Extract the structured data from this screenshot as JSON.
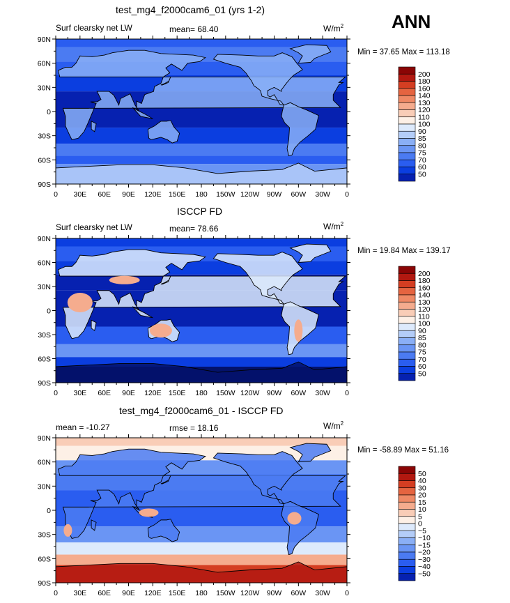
{
  "header": {
    "season": "ANN"
  },
  "colors": {
    "abs_scale": [
      "#03126b",
      "#0621b0",
      "#0b3ee0",
      "#2a5df0",
      "#4b7bf2",
      "#6a95f4",
      "#8aaff6",
      "#b4cdf8",
      "#ddeafc",
      "#fdf0e6",
      "#f9cdb7",
      "#f5ac8e",
      "#ef8965",
      "#e56440",
      "#d43e22",
      "#b21810",
      "#8a0505"
    ],
    "diff_scale": [
      "#03126b",
      "#0621b0",
      "#0b3ee0",
      "#2a5df0",
      "#4b7bf2",
      "#6a95f4",
      "#8aaff6",
      "#b4cdf8",
      "#ddeafc",
      "#fdf0e6",
      "#f9cdb7",
      "#f5ac8e",
      "#ef8965",
      "#e56440",
      "#d43e22",
      "#b21810",
      "#8a0505"
    ]
  },
  "panels": [
    {
      "title": "test_mg4_f2000cam6_01 (yrs 1-2)",
      "left_label": "Surf clearsky net LW",
      "mean_label": "mean=  68.40",
      "units": "W/m",
      "units_sup": "2",
      "minmax": "Min =  37.65 Max = 113.18",
      "colorbar_labels": [
        "200",
        "180",
        "160",
        "140",
        "130",
        "120",
        "110",
        "100",
        "90",
        "85",
        "80",
        "75",
        "70",
        "60",
        "50"
      ]
    },
    {
      "title": "ISCCP FD",
      "left_label": "Surf clearsky net LW",
      "mean_label": "mean=  78.66",
      "units": "W/m",
      "units_sup": "2",
      "minmax": "Min =  19.84 Max = 139.17",
      "colorbar_labels": [
        "200",
        "180",
        "160",
        "140",
        "130",
        "120",
        "110",
        "100",
        "90",
        "85",
        "80",
        "75",
        "70",
        "60",
        "50"
      ]
    },
    {
      "title": "test_mg4_f2000cam6_01 - ISCCP FD",
      "left_label": "mean = -10.27",
      "mean_label": "rmse =  18.16",
      "units": "W/m",
      "units_sup": "2",
      "minmax": "Min = -58.89 Max =  51.16",
      "colorbar_labels": [
        "50",
        "40",
        "30",
        "20",
        "15",
        "10",
        "5",
        "0",
        "−5",
        "−10",
        "−15",
        "−20",
        "−30",
        "−40",
        "−50"
      ]
    }
  ],
  "chart_data": {
    "type": "heatmap",
    "title": "ANN",
    "xticks": [
      "0",
      "30E",
      "60E",
      "90E",
      "120E",
      "150E",
      "180",
      "150W",
      "120W",
      "90W",
      "60W",
      "30W",
      "0"
    ],
    "yticks": [
      "90N",
      "60N",
      "30N",
      "0",
      "30S",
      "60S",
      "90S"
    ],
    "xlim": [
      0,
      360
    ],
    "ylim": [
      -90,
      90
    ],
    "panels": [
      {
        "name": "test_mg4_f2000cam6_01 (yrs 1-2)",
        "variable": "Surf clearsky net LW",
        "mean": 68.4,
        "min": 37.65,
        "max": 113.18,
        "units": "W/m2",
        "contour_levels": [
          50,
          60,
          70,
          75,
          80,
          85,
          90,
          100,
          110,
          120,
          130,
          140,
          160,
          180,
          200
        ]
      },
      {
        "name": "ISCCP FD",
        "variable": "Surf clearsky net LW",
        "mean": 78.66,
        "min": 19.84,
        "max": 139.17,
        "units": "W/m2",
        "contour_levels": [
          50,
          60,
          70,
          75,
          80,
          85,
          90,
          100,
          110,
          120,
          130,
          140,
          160,
          180,
          200
        ]
      },
      {
        "name": "test_mg4_f2000cam6_01 - ISCCP FD",
        "mean": -10.27,
        "rmse": 18.16,
        "min": -58.89,
        "max": 51.16,
        "units": "W/m2",
        "contour_levels": [
          -50,
          -40,
          -30,
          -20,
          -15,
          -10,
          -5,
          0,
          5,
          10,
          15,
          20,
          30,
          40,
          50
        ]
      }
    ]
  }
}
